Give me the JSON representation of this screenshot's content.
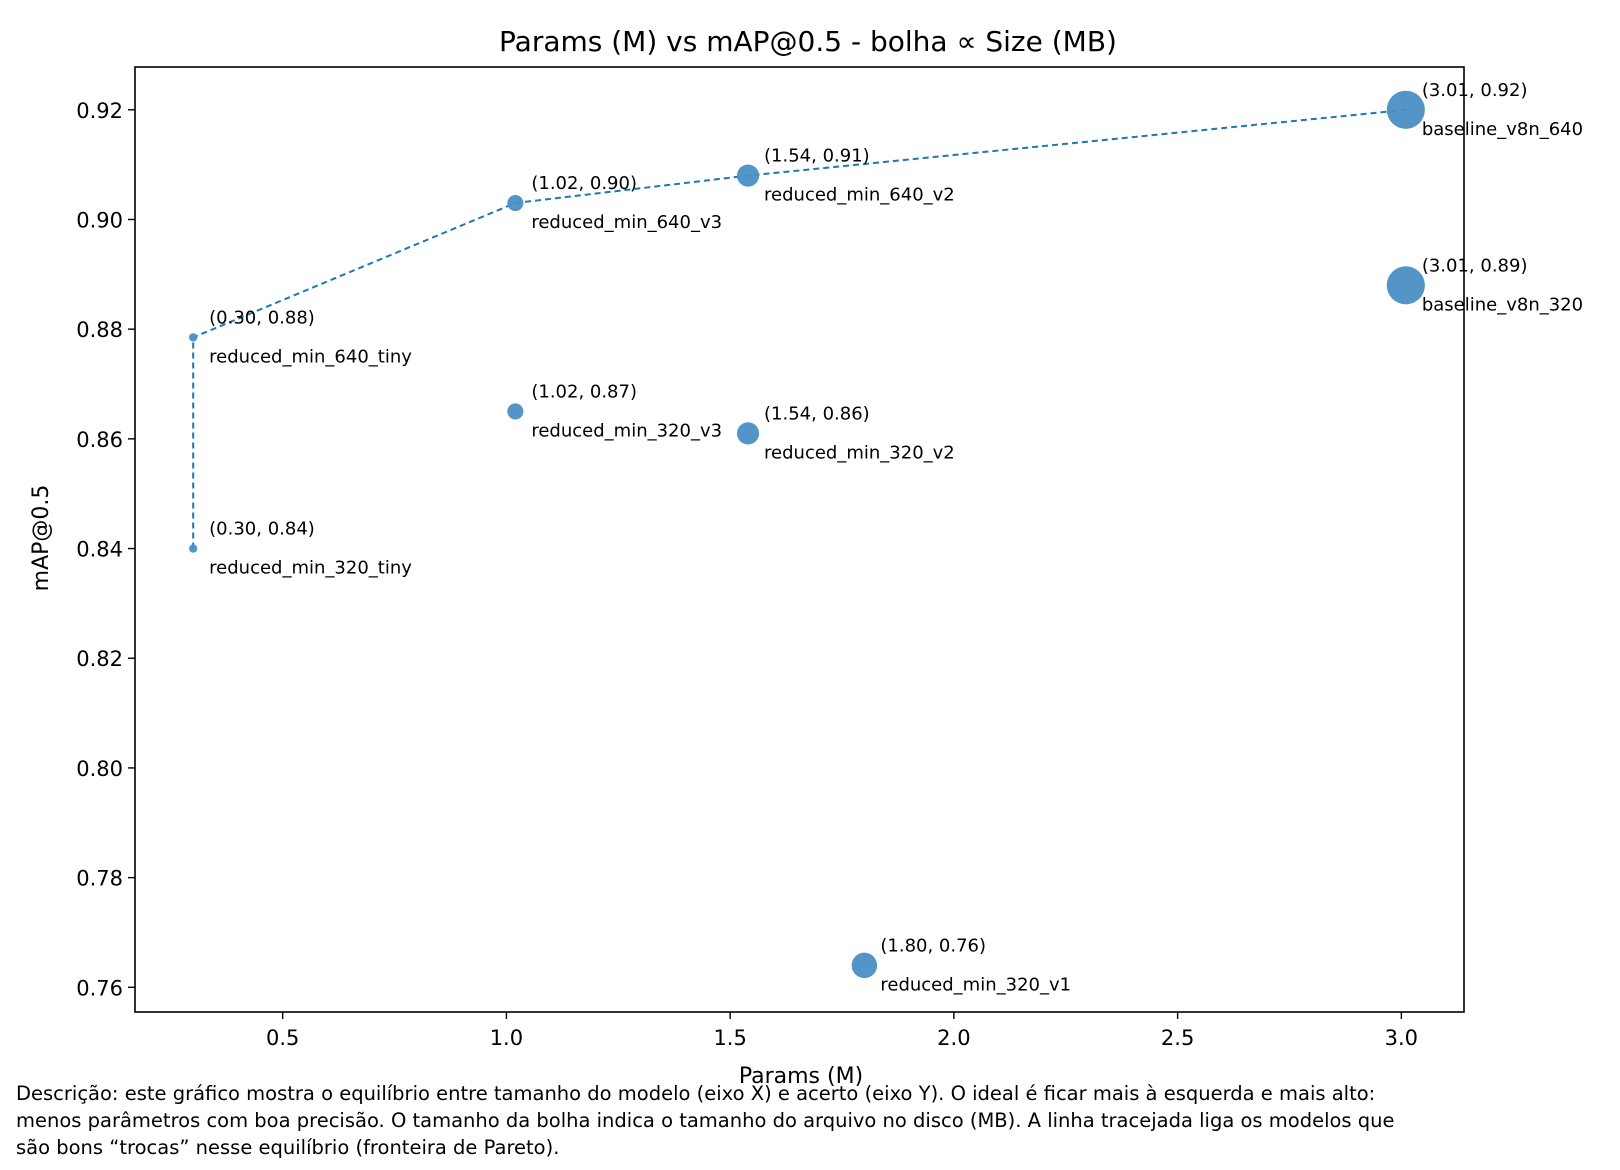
{
  "chart_data": {
    "type": "scatter",
    "title": "Params (M) vs mAP@0.5  -  bolha ∝ Size (MB)",
    "xlabel": "Params (M)",
    "ylabel": "mAP@0.5",
    "xlim": [
      0.17,
      3.14
    ],
    "ylim": [
      0.7555,
      0.9278
    ],
    "xticks": [
      0.5,
      1.0,
      1.5,
      2.0,
      2.5,
      3.0
    ],
    "xtick_labels": [
      "0.5",
      "1.0",
      "1.5",
      "2.0",
      "2.5",
      "3.0"
    ],
    "yticks": [
      0.76,
      0.78,
      0.8,
      0.82,
      0.84,
      0.86,
      0.88,
      0.9,
      0.92
    ],
    "ytick_labels": [
      "0.76",
      "0.78",
      "0.80",
      "0.82",
      "0.84",
      "0.86",
      "0.88",
      "0.90",
      "0.92"
    ],
    "grid": false,
    "marker_color": "#4a8fc4",
    "line_color": "#1f77b4",
    "points": [
      {
        "name": "baseline_v8n_640",
        "x": 3.01,
        "y": 0.92,
        "coord_label": "(3.01, 0.92)",
        "size_mb": 6.2
      },
      {
        "name": "baseline_v8n_320",
        "x": 3.01,
        "y": 0.888,
        "coord_label": "(3.01, 0.89)",
        "size_mb": 6.2
      },
      {
        "name": "reduced_min_640_v2",
        "x": 1.54,
        "y": 0.908,
        "coord_label": "(1.54, 0.91)",
        "size_mb": 3.3
      },
      {
        "name": "reduced_min_640_v3",
        "x": 1.02,
        "y": 0.903,
        "coord_label": "(1.02, 0.90)",
        "size_mb": 2.2
      },
      {
        "name": "reduced_min_640_tiny",
        "x": 0.3,
        "y": 0.8785,
        "coord_label": "(0.30, 0.88)",
        "size_mb": 0.8
      },
      {
        "name": "reduced_min_320_v3",
        "x": 1.02,
        "y": 0.865,
        "coord_label": "(1.02, 0.87)",
        "size_mb": 2.2
      },
      {
        "name": "reduced_min_320_v2",
        "x": 1.54,
        "y": 0.861,
        "coord_label": "(1.54, 0.86)",
        "size_mb": 3.3
      },
      {
        "name": "reduced_min_320_tiny",
        "x": 0.3,
        "y": 0.84,
        "coord_label": "(0.30, 0.84)",
        "size_mb": 0.8
      },
      {
        "name": "reduced_min_320_v1",
        "x": 1.8,
        "y": 0.764,
        "coord_label": "(1.80, 0.76)",
        "size_mb": 3.9
      }
    ],
    "pareto_line": [
      {
        "x": 0.3,
        "y": 0.84
      },
      {
        "x": 0.3,
        "y": 0.8785
      },
      {
        "x": 1.02,
        "y": 0.903
      },
      {
        "x": 1.54,
        "y": 0.908
      },
      {
        "x": 3.01,
        "y": 0.92
      }
    ]
  },
  "caption": "Descrição: este gráfico mostra o equilíbrio entre tamanho do modelo (eixo X) e acerto (eixo Y). O ideal é ficar mais à esquerda e mais alto:\nmenos parâmetros com boa precisão. O tamanho da bolha indica o tamanho do arquivo no disco (MB). A linha tracejada liga os modelos que\nsão bons “trocas” nesse equilíbrio (fronteira de Pareto)."
}
